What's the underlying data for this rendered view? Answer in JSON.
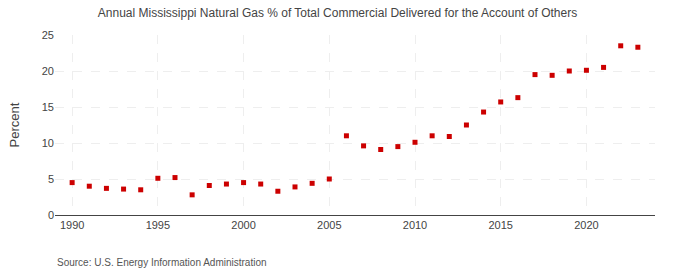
{
  "chart_data": {
    "type": "scatter",
    "title": "Annual Mississippi Natural Gas % of Total Commercial Delivered for the Account of Others",
    "ylabel": "Percent",
    "annotations": [
      "Source: U.S. Energy Information Administration"
    ],
    "x": [
      1990,
      1991,
      1992,
      1993,
      1994,
      1995,
      1996,
      1997,
      1998,
      1999,
      2000,
      2001,
      2002,
      2003,
      2004,
      2005,
      2006,
      2007,
      2008,
      2009,
      2010,
      2011,
      2012,
      2013,
      2014,
      2015,
      2016,
      2017,
      2018,
      2019,
      2020,
      2021,
      2022,
      2023
    ],
    "values": [
      4.5,
      4.0,
      3.7,
      3.6,
      3.5,
      5.1,
      5.2,
      2.8,
      4.1,
      4.3,
      4.5,
      4.3,
      3.3,
      3.9,
      4.4,
      5.0,
      11.0,
      9.6,
      9.1,
      9.5,
      10.1,
      11.0,
      10.9,
      12.5,
      14.3,
      15.7,
      16.3,
      19.5,
      19.4,
      20.0,
      20.1,
      20.5,
      23.5,
      23.3
    ],
    "color": "#cc0000",
    "marker": "square",
    "xlim": [
      1989,
      2024
    ],
    "xticks": [
      1990,
      1995,
      2000,
      2005,
      2010,
      2015,
      2020
    ],
    "ylim": [
      0,
      25
    ],
    "yticks": [
      0,
      5,
      10,
      15,
      20,
      25
    ],
    "grid": true
  }
}
